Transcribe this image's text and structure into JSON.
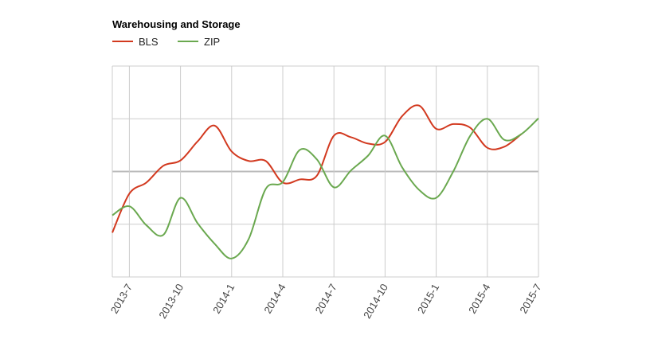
{
  "chart_data": {
    "type": "line",
    "title": "Warehousing and Storage",
    "xlabel": "",
    "ylabel": "",
    "legend_position": "top-left",
    "grid": true,
    "x": [
      "2013-6",
      "2013-7",
      "2013-8",
      "2013-9",
      "2013-10",
      "2013-11",
      "2013-12",
      "2014-1",
      "2014-2",
      "2014-3",
      "2014-4",
      "2014-5",
      "2014-6",
      "2014-7",
      "2014-8",
      "2014-9",
      "2014-10",
      "2014-11",
      "2014-12",
      "2015-1",
      "2015-2",
      "2015-3",
      "2015-4",
      "2015-5",
      "2015-6",
      "2015-7"
    ],
    "tick_labels": [
      "2013-7",
      "2013-10",
      "2014-1",
      "2014-4",
      "2014-7",
      "2014-10",
      "2015-1",
      "2015-4",
      "2015-7"
    ],
    "ylim": [
      -2,
      2
    ],
    "series": [
      {
        "name": "BLS",
        "color": "#d2391f",
        "values": [
          -1.16,
          -0.42,
          -0.21,
          0.11,
          0.21,
          0.57,
          0.87,
          0.38,
          0.2,
          0.2,
          -0.21,
          -0.15,
          -0.08,
          0.68,
          0.65,
          0.53,
          0.56,
          1.05,
          1.25,
          0.81,
          0.9,
          0.83,
          0.45,
          0.47,
          0.71,
          null
        ]
      },
      {
        "name": "ZIP",
        "color": "#6aa84f",
        "values": [
          -0.83,
          -0.66,
          -1.02,
          -1.2,
          -0.5,
          -0.98,
          -1.37,
          -1.65,
          -1.28,
          -0.33,
          -0.2,
          0.41,
          0.23,
          -0.3,
          0.02,
          0.3,
          0.68,
          0.08,
          -0.35,
          -0.5,
          0,
          0.68,
          1.0,
          0.6,
          0.71,
          1.01
        ]
      }
    ]
  }
}
